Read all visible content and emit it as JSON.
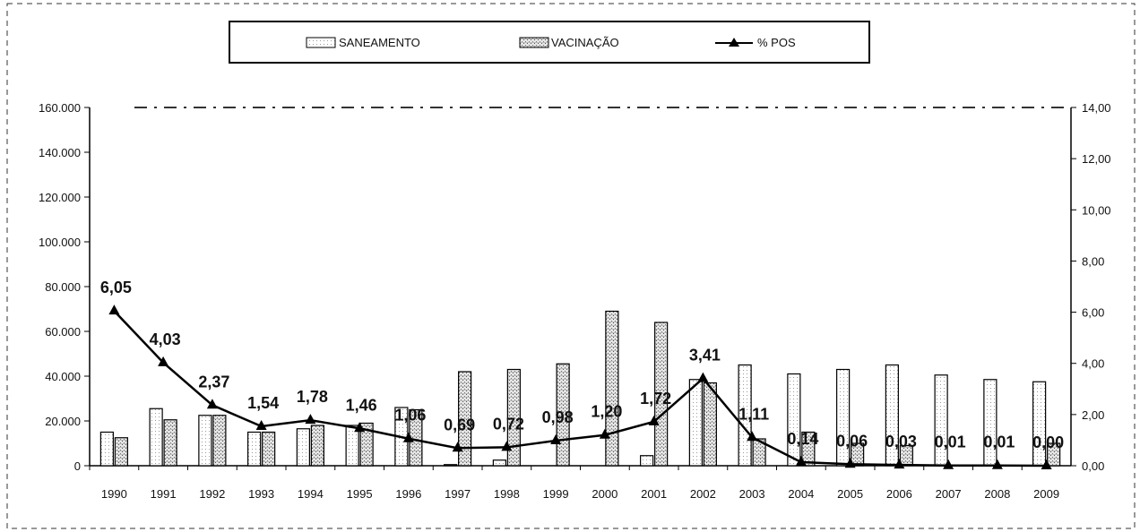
{
  "chart_data": {
    "type": "bar",
    "categories": [
      "1990",
      "1991",
      "1992",
      "1993",
      "1994",
      "1995",
      "1996",
      "1997",
      "1998",
      "1999",
      "2000",
      "2001",
      "2002",
      "2003",
      "2004",
      "2005",
      "2006",
      "2007",
      "2008",
      "2009"
    ],
    "series": [
      {
        "name": "SANEAMENTO",
        "type": "bar",
        "axis": "left",
        "values": [
          15000,
          25500,
          22500,
          15000,
          16500,
          18000,
          26000,
          500,
          2500,
          0,
          0,
          4500,
          38500,
          45000,
          41000,
          43000,
          45000,
          40500,
          38500,
          37500
        ]
      },
      {
        "name": "VACINAÇÃO",
        "type": "bar",
        "axis": "left",
        "values": [
          12500,
          20500,
          22500,
          15000,
          18000,
          19000,
          25000,
          42000,
          43000,
          45500,
          69000,
          64000,
          37000,
          12000,
          15000,
          10000,
          9000,
          0,
          0,
          10000
        ]
      },
      {
        "name": "% POS",
        "type": "line",
        "axis": "right",
        "values": [
          6.05,
          4.03,
          2.37,
          1.54,
          1.78,
          1.46,
          1.06,
          0.69,
          0.72,
          0.98,
          1.2,
          1.72,
          3.41,
          1.11,
          0.14,
          0.06,
          0.03,
          0.01,
          0.01,
          0.0
        ],
        "labels": [
          "6,05",
          "4,03",
          "2,37",
          "1,54",
          "1,78",
          "1,46",
          "1,06",
          "0,69",
          "0,72",
          "0,98",
          "1,20",
          "1,72",
          "3,41",
          "1,11",
          "0,14",
          "0,06",
          "0,03",
          "0,01",
          "0,01",
          "0,00"
        ]
      }
    ],
    "y_left": {
      "ylim": [
        0,
        160000
      ],
      "ticks": [
        0,
        20000,
        40000,
        60000,
        80000,
        100000,
        120000,
        140000,
        160000
      ],
      "tick_labels": [
        "0",
        "20.000",
        "40.000",
        "60.000",
        "80.000",
        "100.000",
        "120.000",
        "140.000",
        "160.000"
      ]
    },
    "y_right": {
      "ylim": [
        0,
        14
      ],
      "ticks": [
        0,
        2,
        4,
        6,
        8,
        10,
        12,
        14
      ],
      "tick_labels": [
        "0,00",
        "2,00",
        "4,00",
        "6,00",
        "8,00",
        "10,00",
        "12,00",
        "14,00"
      ]
    },
    "legend": {
      "placement": "top-center",
      "items": [
        "SANEAMENTO",
        "VACINAÇÃO",
        "% POS"
      ]
    },
    "grid": false,
    "colors": {
      "saneamento": "#ffffff",
      "vacinacao": "#d9d9d9",
      "line": "#000000",
      "stroke": "#000000"
    }
  }
}
